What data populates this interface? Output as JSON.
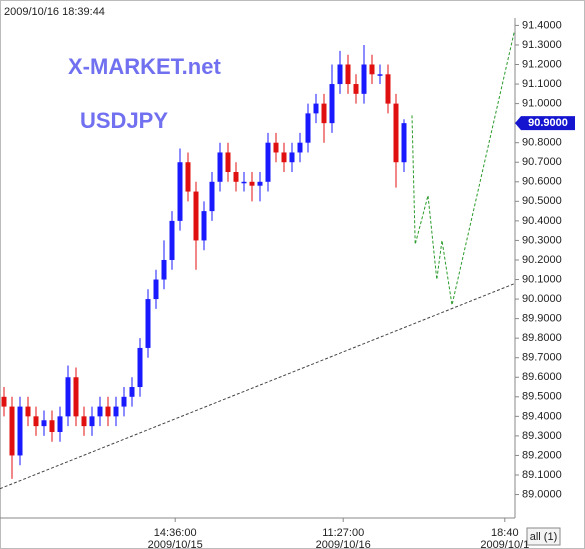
{
  "header": {
    "timestamp": "2009/10/16 18:39:44",
    "button": "all (1)"
  },
  "chart_data": {
    "type": "candlestick",
    "title": "X-MARKET.net",
    "subtitle": "USDJPY",
    "up_color": "#1a1aff",
    "down_color": "#e01010",
    "x": [
      0.5,
      1.5,
      2.5,
      3.5,
      4.5,
      5.5,
      6.5,
      7.5,
      8.5,
      9.5,
      10.5,
      11.5,
      12.5,
      13.5,
      14.5,
      15.5,
      16.5,
      17.5,
      18.5,
      19.5,
      20.5,
      21.5,
      22.5,
      23.5,
      24.5,
      25.5,
      26.5,
      27.5,
      28.5,
      29.5,
      30.5,
      31.5,
      32.5,
      33.5,
      34.5,
      35.5,
      36.5,
      37.5,
      38.5,
      39.5,
      40.5,
      41.5,
      42.5,
      43.5,
      44.5,
      45.5,
      46.5,
      47.5,
      48.5,
      49.5,
      50.5
    ],
    "open": [
      89.5,
      89.45,
      89.2,
      89.45,
      89.4,
      89.35,
      89.38,
      89.32,
      89.4,
      89.6,
      89.4,
      89.35,
      89.4,
      89.45,
      89.4,
      89.45,
      89.5,
      89.55,
      89.75,
      90.0,
      90.1,
      90.2,
      90.4,
      90.7,
      90.55,
      90.3,
      90.45,
      90.6,
      90.75,
      90.65,
      90.6,
      90.6,
      90.58,
      90.6,
      90.8,
      90.75,
      90.7,
      90.75,
      90.8,
      90.95,
      91.0,
      90.9,
      91.1,
      91.2,
      91.1,
      91.05,
      91.2,
      91.15,
      91.15,
      91.0,
      90.7
    ],
    "high": [
      89.55,
      89.5,
      89.5,
      89.5,
      89.45,
      89.43,
      89.43,
      89.45,
      89.66,
      89.65,
      89.45,
      89.45,
      89.5,
      89.5,
      89.5,
      89.55,
      89.6,
      89.8,
      90.05,
      90.15,
      90.3,
      90.45,
      90.77,
      90.75,
      90.6,
      90.5,
      90.65,
      90.8,
      90.8,
      90.7,
      90.65,
      90.65,
      90.65,
      90.85,
      90.85,
      90.8,
      90.8,
      90.85,
      91.0,
      91.05,
      91.05,
      91.2,
      91.27,
      91.25,
      91.15,
      91.3,
      91.25,
      91.2,
      91.2,
      91.05,
      90.92
    ],
    "low": [
      89.4,
      89.08,
      89.15,
      89.35,
      89.3,
      89.3,
      89.27,
      89.27,
      89.35,
      89.35,
      89.3,
      89.3,
      89.35,
      89.35,
      89.35,
      89.4,
      89.45,
      89.5,
      89.7,
      89.95,
      90.05,
      90.15,
      90.35,
      90.5,
      90.15,
      90.25,
      90.4,
      90.55,
      90.6,
      90.55,
      90.55,
      90.5,
      90.5,
      90.55,
      90.7,
      90.65,
      90.65,
      90.7,
      90.75,
      90.9,
      90.8,
      90.85,
      91.05,
      91.05,
      91.0,
      91.0,
      91.1,
      91.1,
      90.95,
      90.57,
      90.65
    ],
    "close": [
      89.45,
      89.2,
      89.45,
      89.4,
      89.35,
      89.38,
      89.32,
      89.4,
      89.6,
      89.4,
      89.35,
      89.4,
      89.45,
      89.4,
      89.45,
      89.5,
      89.55,
      89.75,
      90.0,
      90.1,
      90.2,
      90.4,
      90.7,
      90.55,
      90.3,
      90.45,
      90.6,
      90.75,
      90.65,
      90.6,
      90.6,
      90.58,
      90.6,
      90.8,
      90.75,
      90.7,
      90.75,
      90.8,
      90.95,
      91.0,
      90.9,
      91.1,
      91.2,
      91.1,
      91.05,
      91.2,
      91.15,
      91.15,
      91.0,
      90.7,
      90.9
    ],
    "lines": [
      {
        "name": "trend",
        "color": "#444444",
        "x": [
          0,
          64.375
        ],
        "values": [
          89.03,
          90.08
        ]
      },
      {
        "name": "projection",
        "color": "#2a9a2a",
        "x": [
          51.5,
          51.9,
          53.5,
          54.6,
          55.25,
          56.5,
          64.3
        ],
        "values": [
          90.94,
          90.28,
          90.53,
          90.1,
          90.3,
          89.97,
          91.37
        ]
      }
    ],
    "current": {
      "value": 90.9,
      "label": "90.9000"
    },
    "xlim": [
      0,
      64.375
    ],
    "xticks": [
      {
        "value": 21.9,
        "label": "14:36:00",
        "date": "2009/10/15"
      },
      {
        "value": 42.9,
        "label": "11:27:00",
        "date": "2009/10/16"
      },
      {
        "value": 63.1,
        "label": "18:40",
        "date": "2009/10/1"
      }
    ],
    "ylim": [
      88.88,
      91.53
    ],
    "yticks": [
      {
        "value": 89.0,
        "label": "89.0000"
      },
      {
        "value": 89.1,
        "label": "89.1000"
      },
      {
        "value": 89.2,
        "label": "89.2000"
      },
      {
        "value": 89.3,
        "label": "89.3000"
      },
      {
        "value": 89.4,
        "label": "89.4000"
      },
      {
        "value": 89.5,
        "label": "89.5000"
      },
      {
        "value": 89.6,
        "label": "89.6000"
      },
      {
        "value": 89.7,
        "label": "89.7000"
      },
      {
        "value": 89.8,
        "label": "89.8000"
      },
      {
        "value": 89.9,
        "label": "89.9000"
      },
      {
        "value": 90.0,
        "label": "90.0000"
      },
      {
        "value": 90.1,
        "label": "90.1000"
      },
      {
        "value": 90.2,
        "label": "90.2000"
      },
      {
        "value": 90.3,
        "label": "90.3000"
      },
      {
        "value": 90.4,
        "label": "90.4000"
      },
      {
        "value": 90.5,
        "label": "90.5000"
      },
      {
        "value": 90.6,
        "label": "90.6000"
      },
      {
        "value": 90.7,
        "label": "90.7000"
      },
      {
        "value": 90.8,
        "label": "90.8000"
      },
      {
        "value": 90.9,
        "label": "90.9000"
      },
      {
        "value": 91.0,
        "label": "91.0000"
      },
      {
        "value": 91.1,
        "label": "91.1000"
      },
      {
        "value": 91.2,
        "label": "91.2000"
      },
      {
        "value": 91.3,
        "label": "91.3000"
      },
      {
        "value": 91.4,
        "label": "91.4000"
      }
    ]
  }
}
